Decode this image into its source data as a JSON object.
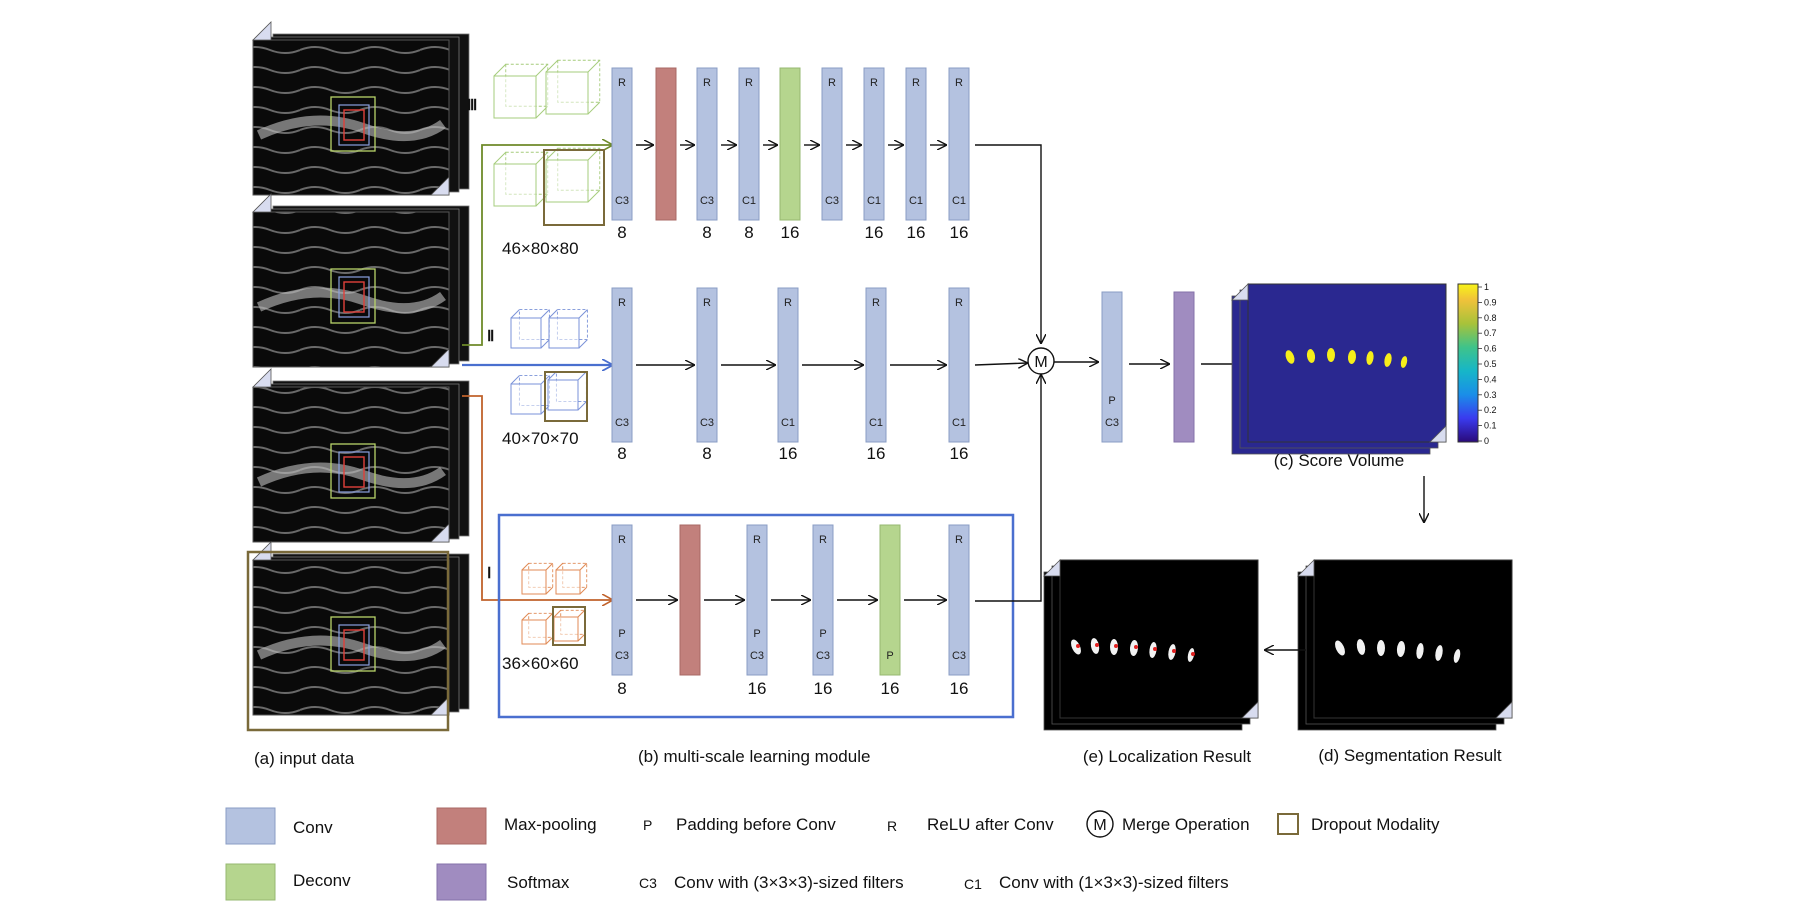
{
  "colors": {
    "conv": "#b4c2e0",
    "maxpool": "#c2807c",
    "deconv": "#b5d58e",
    "softmax": "#a08cc0",
    "path_iii": "#6e8a2a",
    "path_ii": "#4a6fcf",
    "path_i": "#c0622b",
    "dropout_box": "#7a6a3a",
    "module_box": "#4a6fcf"
  },
  "scales": {
    "iii": {
      "roman": "Ⅲ",
      "dims": "46×80×80"
    },
    "ii": {
      "roman": "Ⅱ",
      "dims": "40×70×70"
    },
    "i": {
      "roman": "Ⅰ",
      "dims": "36×60×60"
    }
  },
  "branch_iii": [
    {
      "kind": "conv",
      "top": "R",
      "bottom": "C3",
      "count": "8"
    },
    {
      "kind": "maxpool",
      "top": "",
      "bottom": "",
      "count": ""
    },
    {
      "kind": "conv",
      "top": "R",
      "bottom": "C3",
      "count": "8"
    },
    {
      "kind": "conv",
      "top": "R",
      "bottom": "C1",
      "count": "8"
    },
    {
      "kind": "deconv",
      "top": "",
      "bottom": "",
      "count": "16"
    },
    {
      "kind": "conv",
      "top": "R",
      "bottom": "C3",
      "count": ""
    },
    {
      "kind": "conv",
      "top": "R",
      "bottom": "C1",
      "count": "16"
    },
    {
      "kind": "conv",
      "top": "R",
      "bottom": "C1",
      "count": "16"
    },
    {
      "kind": "conv",
      "top": "R",
      "bottom": "C1",
      "count": "16"
    }
  ],
  "branch_ii": [
    {
      "kind": "conv",
      "top": "R",
      "bottom": "C3",
      "count": "8"
    },
    {
      "kind": "conv",
      "top": "R",
      "bottom": "C3",
      "count": "8"
    },
    {
      "kind": "conv",
      "top": "R",
      "bottom": "C1",
      "count": "16"
    },
    {
      "kind": "conv",
      "top": "R",
      "bottom": "C1",
      "count": "16"
    },
    {
      "kind": "conv",
      "top": "R",
      "bottom": "C1",
      "count": "16"
    }
  ],
  "branch_i": [
    {
      "kind": "conv",
      "top": "R",
      "bottom": "P\nC3",
      "count": "8"
    },
    {
      "kind": "maxpool",
      "top": "",
      "bottom": "",
      "count": ""
    },
    {
      "kind": "conv",
      "top": "R",
      "bottom": "P\nC3",
      "count": "16"
    },
    {
      "kind": "conv",
      "top": "R",
      "bottom": "P\nC3",
      "count": "16"
    },
    {
      "kind": "deconv",
      "top": "",
      "bottom": "P",
      "count": "16"
    },
    {
      "kind": "conv",
      "top": "R",
      "bottom": "C3",
      "count": "16"
    }
  ],
  "merge": {
    "symbol": "M",
    "post_conv_labels": "P\nC3"
  },
  "colorbar_ticks": [
    "1",
    "0.9",
    "0.8",
    "0.7",
    "0.6",
    "0.5",
    "0.4",
    "0.3",
    "0.2",
    "0.1",
    "0"
  ],
  "captions": {
    "a": "(a)  input data",
    "b": "(b)  multi-scale learning module",
    "c": "(c) Score Volume",
    "d": "(d) Segmentation Result",
    "e": "(e) Localization Result"
  },
  "legend": [
    {
      "swatch": "conv",
      "label": "Conv"
    },
    {
      "swatch": "maxpool",
      "label": "Max-pooling"
    },
    {
      "swatch": "deconv",
      "label": "Deconv"
    },
    {
      "swatch": "softmax",
      "label": "Softmax"
    },
    {
      "glyph": "P",
      "label": "Padding before Conv"
    },
    {
      "glyph": "R",
      "label": "ReLU after Conv"
    },
    {
      "glyph": "C3",
      "label": "Conv with (3×3×3)-sized filters"
    },
    {
      "glyph": "C1",
      "label": "Conv with (1×3×3)-sized filters"
    },
    {
      "glyph": "M",
      "label": "Merge Operation"
    },
    {
      "glyph": "box",
      "label": "Dropout Modality"
    }
  ]
}
